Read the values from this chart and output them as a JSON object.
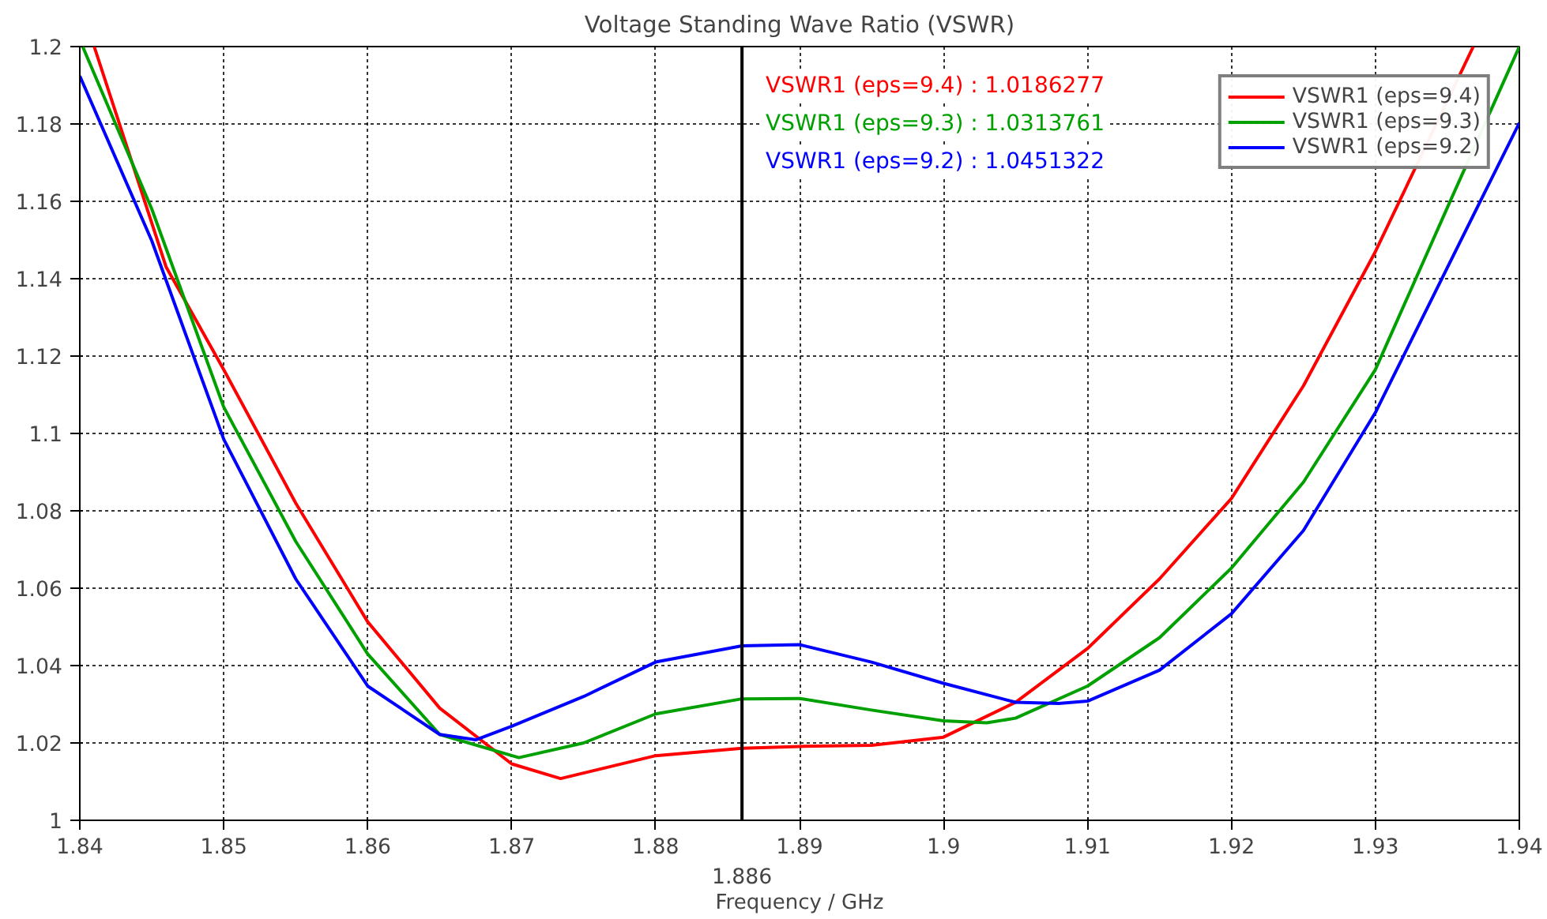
{
  "chart_data": {
    "type": "line",
    "title": "Voltage Standing Wave Ratio (VSWR)",
    "xlabel": "Frequency / GHz",
    "xlim": [
      1.84,
      1.94
    ],
    "ylim": [
      1,
      1.2
    ],
    "xticks": [
      1.84,
      1.85,
      1.86,
      1.87,
      1.88,
      1.89,
      1.9,
      1.91,
      1.92,
      1.93,
      1.94
    ],
    "yticks": [
      1,
      1.02,
      1.04,
      1.06,
      1.08,
      1.1,
      1.12,
      1.14,
      1.16,
      1.18,
      1.2
    ],
    "grid": true,
    "legend": "top right",
    "line_style": "solid",
    "series": [
      {
        "name": "VSWR1 (eps=9.4)",
        "color": "#ff0000",
        "x": [
          1.841,
          1.846,
          1.85,
          1.855,
          1.86,
          1.865,
          1.87,
          1.8734,
          1.88,
          1.886,
          1.89,
          1.895,
          1.9,
          1.905,
          1.91,
          1.915,
          1.92,
          1.925,
          1.93,
          1.9368
        ],
        "values": [
          1.2,
          1.143,
          1.1165,
          1.082,
          1.0513,
          1.029,
          1.0146,
          1.0108,
          1.0167,
          1.0186,
          1.0191,
          1.0194,
          1.0215,
          1.0305,
          1.0444,
          1.0624,
          1.0832,
          1.1123,
          1.147,
          1.2
        ]
      },
      {
        "name": "VSWR1 (eps=9.3)",
        "color": "#00a000",
        "x": [
          1.8402,
          1.845,
          1.85,
          1.855,
          1.86,
          1.865,
          1.8705,
          1.875,
          1.88,
          1.886,
          1.89,
          1.895,
          1.9,
          1.903,
          1.905,
          1.91,
          1.915,
          1.92,
          1.925,
          1.93,
          1.935,
          1.94
        ],
        "values": [
          1.2,
          1.158,
          1.1068,
          1.0721,
          1.043,
          1.0222,
          1.0162,
          1.02,
          1.0275,
          1.0314,
          1.0315,
          1.0285,
          1.0257,
          1.0252,
          1.0264,
          1.0347,
          1.0472,
          1.0652,
          1.0874,
          1.1165,
          1.1584,
          1.2
        ]
      },
      {
        "name": "VSWR1 (eps=9.2)",
        "color": "#0000ff",
        "x": [
          1.84,
          1.845,
          1.85,
          1.855,
          1.86,
          1.865,
          1.8675,
          1.87,
          1.875,
          1.88,
          1.886,
          1.89,
          1.895,
          1.9,
          1.905,
          1.908,
          1.91,
          1.915,
          1.92,
          1.925,
          1.93,
          1.935,
          1.94
        ],
        "values": [
          1.1924,
          1.1498,
          1.0985,
          1.0624,
          1.0347,
          1.0222,
          1.0208,
          1.0243,
          1.032,
          1.0409,
          1.0451,
          1.0454,
          1.0409,
          1.0354,
          1.0305,
          1.0302,
          1.0308,
          1.0388,
          1.0534,
          1.0749,
          1.1054,
          1.1429,
          1.1803
        ]
      }
    ],
    "ref_lines": [
      {
        "axis": "x",
        "value": 1.886,
        "label": "1.886",
        "color": "#000000"
      }
    ],
    "annotations": [
      "VSWR1 (eps=9.4) : 1.0186277",
      "VSWR1 (eps=9.3) : 1.0313761",
      "VSWR1 (eps=9.2) : 1.0451322"
    ]
  }
}
